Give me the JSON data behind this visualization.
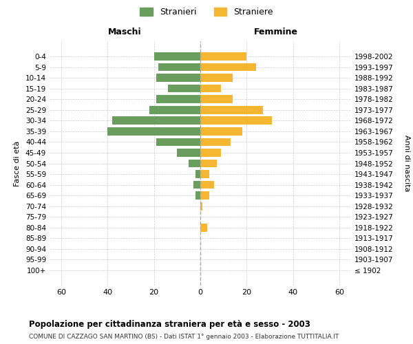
{
  "age_groups": [
    "100+",
    "95-99",
    "90-94",
    "85-89",
    "80-84",
    "75-79",
    "70-74",
    "65-69",
    "60-64",
    "55-59",
    "50-54",
    "45-49",
    "40-44",
    "35-39",
    "30-34",
    "25-29",
    "20-24",
    "15-19",
    "10-14",
    "5-9",
    "0-4"
  ],
  "birth_years": [
    "≤ 1902",
    "1903-1907",
    "1908-1912",
    "1913-1917",
    "1918-1922",
    "1923-1927",
    "1928-1932",
    "1933-1937",
    "1938-1942",
    "1943-1947",
    "1948-1952",
    "1953-1957",
    "1958-1962",
    "1963-1967",
    "1968-1972",
    "1973-1977",
    "1978-1982",
    "1983-1987",
    "1988-1992",
    "1993-1997",
    "1998-2002"
  ],
  "males": [
    0,
    0,
    0,
    0,
    0,
    0,
    0,
    2,
    3,
    2,
    5,
    10,
    19,
    40,
    38,
    22,
    19,
    14,
    19,
    18,
    20
  ],
  "females": [
    0,
    0,
    0,
    0,
    3,
    0,
    1,
    4,
    6,
    4,
    7,
    9,
    13,
    18,
    31,
    27,
    14,
    9,
    14,
    24,
    20
  ],
  "male_color": "#6a9e5e",
  "female_color": "#f5b731",
  "title_bold": "Popolazione per cittadinanza straniera per età e sesso - 2003",
  "subtitle": "COMUNE DI CAZZAGO SAN MARTINO (BS) - Dati ISTAT 1° gennaio 2003 - Elaborazione TUTTITALIA.IT",
  "left_label": "Maschi",
  "right_label": "Femmine",
  "ylabel": "Fasce di età",
  "ylabel_right": "Anni di nascita",
  "legend_male": "Stranieri",
  "legend_female": "Straniere",
  "xlim": 65,
  "background_color": "#ffffff",
  "grid_color": "#cccccc"
}
